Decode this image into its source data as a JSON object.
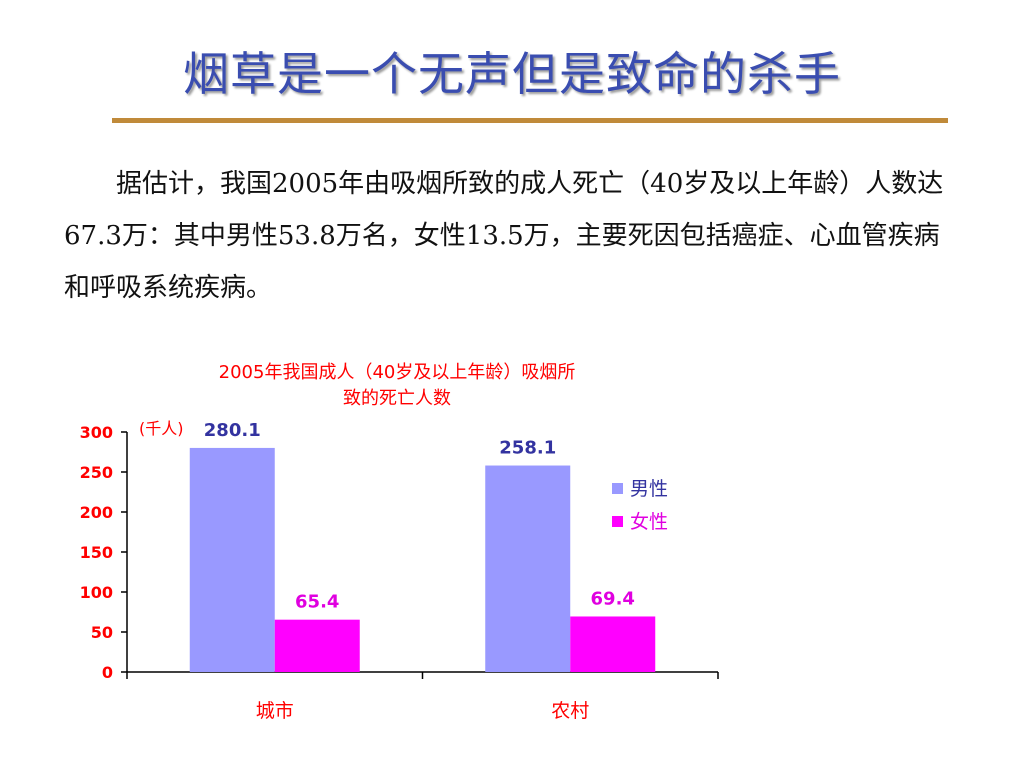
{
  "slide": {
    "title": "烟草是一个无声但是致命的杀手",
    "paragraph": "据估计，我国2005年由吸烟所致的成人死亡（40岁及以上年龄）人数达67.3万：其中男性53.8万名，女性13.5万，主要死因包括癌症、心血管疾病和呼吸系统疾病。"
  },
  "chart_data": {
    "type": "bar",
    "title_line1": "2005年我国成人（40岁及以上年龄）吸烟所",
    "title_line2": "致的死亡人数",
    "unit_label": "(千人)",
    "categories": [
      "城市",
      "农村"
    ],
    "series": [
      {
        "name": "男性",
        "values": [
          280.1,
          258.1
        ],
        "labels": [
          "280.1",
          "258.1"
        ],
        "color": "#9999ff",
        "label_color": "#3333a0"
      },
      {
        "name": "女性",
        "values": [
          65.4,
          69.4
        ],
        "labels": [
          "65.4",
          "69.4"
        ],
        "color": "#ff00ff",
        "label_color": "#e000e0"
      }
    ],
    "ylim": [
      0,
      300
    ],
    "yticks": [
      0,
      50,
      100,
      150,
      200,
      250,
      300
    ],
    "ytick_labels": [
      "0",
      "50",
      "100",
      "150",
      "200",
      "250",
      "300"
    ],
    "grid": false,
    "legend_position": "right",
    "axis_text_color": "#ff0000",
    "title_color": "#ff0000"
  },
  "colors": {
    "title": "#3a4db0",
    "rule": "#c08a3a"
  }
}
